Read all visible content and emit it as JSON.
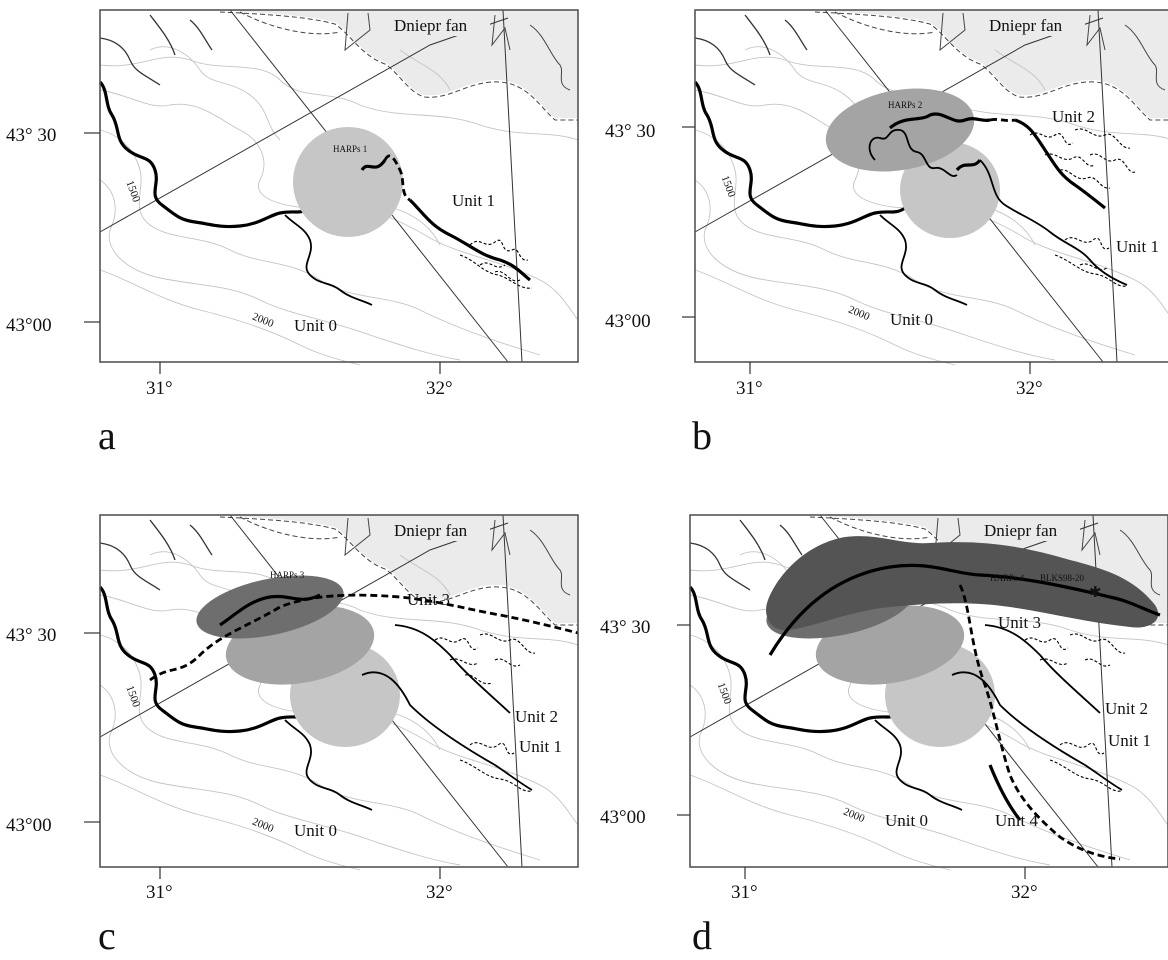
{
  "panels": [
    {
      "id": "a",
      "letter": "a",
      "fan_label": "Dniepr fan",
      "lat_labels": [
        "43° 30",
        "43°00"
      ],
      "lon_labels": [
        "31°",
        "32°"
      ],
      "contour_labels": [
        "1500",
        "2000"
      ],
      "harps_label": "HARPs 1",
      "unit_labels": [
        "Unit 1",
        "Unit 0"
      ]
    },
    {
      "id": "b",
      "letter": "b",
      "fan_label": "Dniepr fan",
      "lat_labels": [
        "43° 30",
        "43°00"
      ],
      "lon_labels": [
        "31°",
        "32°"
      ],
      "contour_labels": [
        "1500",
        "2000"
      ],
      "harps_label": "HARPs 2",
      "unit_labels": [
        "Unit 2",
        "Unit 1",
        "Unit 0"
      ]
    },
    {
      "id": "c",
      "letter": "c",
      "fan_label": "Dniepr fan",
      "lat_labels": [
        "43° 30",
        "43°00"
      ],
      "lon_labels": [
        "31°",
        "32°"
      ],
      "contour_labels": [
        "1500",
        "2000"
      ],
      "harps_label": "HARPs 3",
      "unit_labels": [
        "Unit 3",
        "Unit 2",
        "Unit 1",
        "Unit 0"
      ]
    },
    {
      "id": "d",
      "letter": "d",
      "fan_label": "Dniepr fan",
      "lat_labels": [
        "43° 30",
        "43°00"
      ],
      "lon_labels": [
        "31°",
        "32°"
      ],
      "contour_labels": [
        "1500",
        "2000"
      ],
      "harps_label": "HARPs 4",
      "site_label": "BLKS98-20",
      "unit_labels": [
        "Unit 3",
        "Unit 2",
        "Unit 1",
        "Unit 0",
        "Unit 4"
      ]
    }
  ],
  "colors": {
    "fan_fill": "#ebebeb",
    "harps_light": "#c6c6c6",
    "harps_medium": "#a4a4a4",
    "harps_dark": "#6e6e6e",
    "harps_darkest": "#545454"
  }
}
